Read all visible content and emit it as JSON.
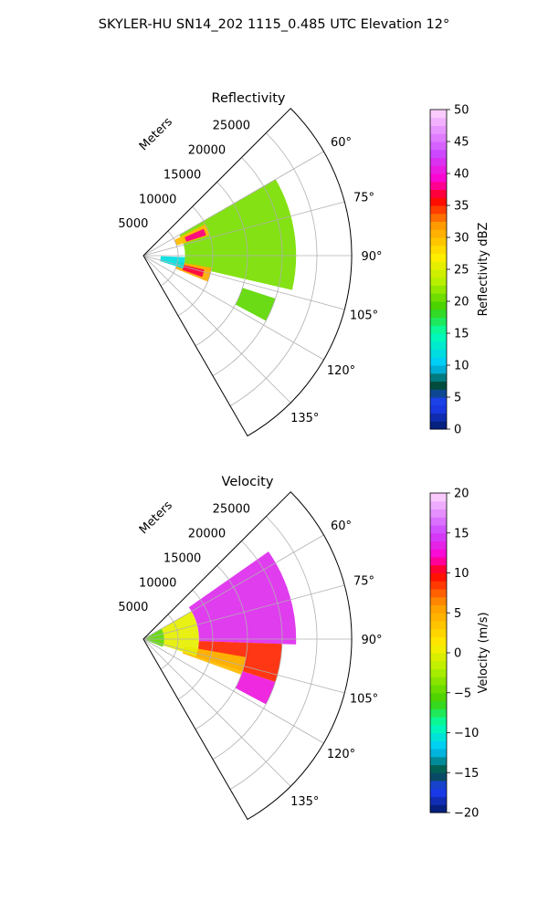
{
  "figure": {
    "title": "SKYLER-HU  SN14_202  1115_0.485 UTC Elevation 12°"
  },
  "chart_data": [
    {
      "type": "heatmap",
      "projection": "polar-sector",
      "title": "Reflectivity",
      "theta_range_deg": [
        45,
        150
      ],
      "theta_ticks": [
        "60°",
        "75°",
        "90°",
        "105°",
        "120°",
        "135°"
      ],
      "theta_tick_values": [
        60,
        75,
        90,
        105,
        120,
        135
      ],
      "r_label": "Meters",
      "r_ticks": [
        "5000",
        "10000",
        "15000",
        "20000",
        "25000"
      ],
      "r_tick_values": [
        5000,
        10000,
        15000,
        20000,
        25000
      ],
      "r_max": 30000,
      "grid": true,
      "colorbar": {
        "label": "Reflectivity dBZ",
        "range": [
          0,
          50
        ],
        "ticks": [
          "0",
          "5",
          "10",
          "15",
          "20",
          "25",
          "30",
          "35",
          "40",
          "45",
          "50"
        ],
        "tick_values": [
          0,
          5,
          10,
          15,
          20,
          25,
          30,
          35,
          40,
          45,
          50
        ],
        "stops": [
          {
            "v": 0,
            "c": "#001a66"
          },
          {
            "v": 4,
            "c": "#1f3fff"
          },
          {
            "v": 7,
            "c": "#004d33"
          },
          {
            "v": 10,
            "c": "#00c8ff"
          },
          {
            "v": 15,
            "c": "#00ffb0"
          },
          {
            "v": 19,
            "c": "#40d000"
          },
          {
            "v": 23,
            "c": "#b4f000"
          },
          {
            "v": 27,
            "c": "#ffee00"
          },
          {
            "v": 32,
            "c": "#ff9900"
          },
          {
            "v": 36,
            "c": "#ff0000"
          },
          {
            "v": 39,
            "c": "#ff00cc"
          },
          {
            "v": 43,
            "c": "#cc44ff"
          },
          {
            "v": 50,
            "c": "#ffd9ff"
          }
        ]
      },
      "regions": [
        {
          "theta": [
            60,
            103
          ],
          "r": [
            6000,
            22000
          ],
          "value": 21
        },
        {
          "theta": [
            63,
            73
          ],
          "r": [
            5000,
            10000
          ],
          "value": 30
        },
        {
          "theta": [
            66,
            72
          ],
          "r": [
            6500,
            9500
          ],
          "value": 38
        },
        {
          "theta": [
            100,
            112
          ],
          "r": [
            5000,
            10000
          ],
          "value": 31
        },
        {
          "theta": [
            103,
            110
          ],
          "r": [
            6000,
            9000
          ],
          "value": 37
        },
        {
          "theta": [
            92,
            108
          ],
          "r": [
            2500,
            6000
          ],
          "value": 12
        },
        {
          "theta": [
            108,
            118
          ],
          "r": [
            15000,
            20000
          ],
          "value": 20
        }
      ]
    },
    {
      "type": "heatmap",
      "projection": "polar-sector",
      "title": "Velocity",
      "theta_range_deg": [
        45,
        150
      ],
      "theta_ticks": [
        "60°",
        "75°",
        "90°",
        "105°",
        "120°",
        "135°"
      ],
      "theta_tick_values": [
        60,
        75,
        90,
        105,
        120,
        135
      ],
      "r_label": "Meters",
      "r_ticks": [
        "5000",
        "10000",
        "15000",
        "20000",
        "25000"
      ],
      "r_tick_values": [
        5000,
        10000,
        15000,
        20000,
        25000
      ],
      "r_max": 30000,
      "grid": true,
      "colorbar": {
        "label": "Velocity (m/s)",
        "range": [
          -20,
          20
        ],
        "ticks": [
          "−20",
          "−15",
          "−10",
          "−5",
          "0",
          "5",
          "10",
          "15",
          "20"
        ],
        "tick_values": [
          -20,
          -15,
          -10,
          -5,
          0,
          5,
          10,
          15,
          20
        ],
        "stops": [
          {
            "v": -20,
            "c": "#001a66"
          },
          {
            "v": -17,
            "c": "#1f3fff"
          },
          {
            "v": -15,
            "c": "#004d33"
          },
          {
            "v": -12,
            "c": "#00c8ff"
          },
          {
            "v": -9,
            "c": "#00ffb0"
          },
          {
            "v": -6,
            "c": "#40d000"
          },
          {
            "v": -2,
            "c": "#b4f000"
          },
          {
            "v": 1,
            "c": "#ffee00"
          },
          {
            "v": 6,
            "c": "#ff9900"
          },
          {
            "v": 10,
            "c": "#ff0000"
          },
          {
            "v": 12,
            "c": "#ff00cc"
          },
          {
            "v": 15,
            "c": "#cc44ff"
          },
          {
            "v": 20,
            "c": "#ffd9ff"
          }
        ]
      },
      "regions": [
        {
          "theta": [
            55,
            92
          ],
          "r": [
            8000,
            22000
          ],
          "value": 14
        },
        {
          "theta": [
            92,
            108
          ],
          "r": [
            8000,
            20000
          ],
          "value": 9
        },
        {
          "theta": [
            100,
            110
          ],
          "r": [
            6000,
            15000
          ],
          "value": 4
        },
        {
          "theta": [
            60,
            108
          ],
          "r": [
            3000,
            8000
          ],
          "value": 0
        },
        {
          "theta": [
            60,
            112
          ],
          "r": [
            0,
            3000
          ],
          "value": -5
        },
        {
          "theta": [
            108,
            118
          ],
          "r": [
            15000,
            20000
          ],
          "value": 13
        }
      ]
    }
  ]
}
